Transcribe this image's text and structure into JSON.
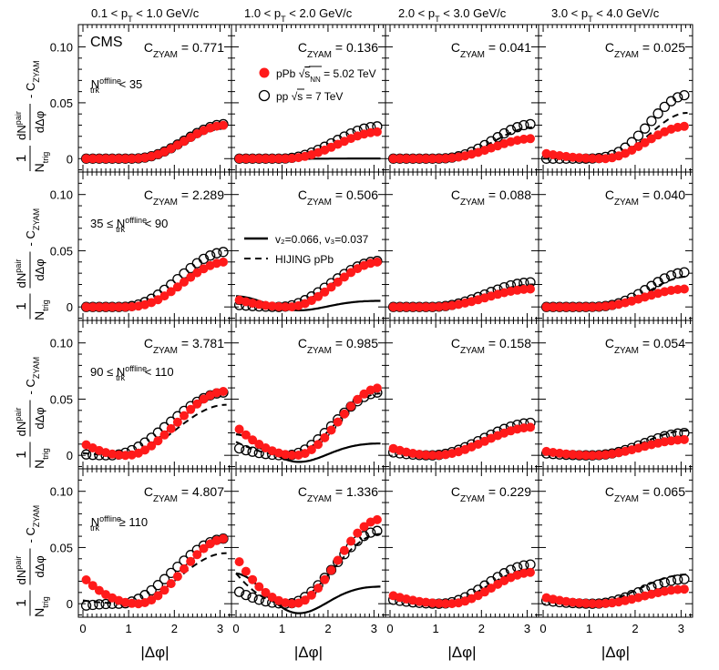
{
  "chart_data": {
    "type": "scatter",
    "grid": "4x4 panels",
    "experiment_label": "CMS",
    "x_axis_label": "|Δφ|",
    "x_range": [
      -0.1,
      3.25
    ],
    "x_ticks": [
      "0",
      "1",
      "2",
      "3"
    ],
    "x_tick_values": [
      0,
      1,
      2,
      3
    ],
    "y_range": [
      -0.012,
      0.12
    ],
    "y_ticks": [
      "0",
      "0.05",
      "0.10"
    ],
    "y_tick_values": [
      0,
      0.05,
      0.1
    ],
    "y_axis_label": {
      "frac_num": "1",
      "frac_den": "N",
      "den_sub": "trig",
      "d_num": "dN",
      "d_sup": "pair",
      "d_den": "dΔφ",
      "minus": "- C",
      "c_sub": "ZYAM"
    },
    "column_titles": [
      {
        "pre": "0.1 < p",
        "sub": "T",
        "post": " < 1.0 GeV/c"
      },
      {
        "pre": "1.0 < p",
        "sub": "T",
        "post": " < 2.0 GeV/c"
      },
      {
        "pre": "2.0 < p",
        "sub": "T",
        "post": " < 3.0 GeV/c"
      },
      {
        "pre": "3.0 < p",
        "sub": "T",
        "post": " < 4.0 GeV/c"
      }
    ],
    "row_labels": [
      {
        "pre": "N",
        "sup": "offline",
        "sub": "trk",
        "post": " < 35"
      },
      {
        "pre": "35 ≤ N",
        "sup": "offline",
        "sub": "trk",
        "post": " < 90"
      },
      {
        "pre": "90 ≤ N",
        "sup": "offline",
        "sub": "trk",
        "post": " < 110"
      },
      {
        "pre": "N",
        "sup": "offline",
        "sub": "trk",
        "post": " ≥ 110"
      }
    ],
    "czyam_prefix": "C",
    "czyam_sub": "ZYAM",
    "czyam_values": [
      [
        "0.771",
        "0.136",
        "0.041",
        "0.025"
      ],
      [
        "2.289",
        "0.506",
        "0.088",
        "0.040"
      ],
      [
        "3.781",
        "0.985",
        "0.158",
        "0.054"
      ],
      [
        "4.807",
        "1.336",
        "0.229",
        "0.065"
      ]
    ],
    "legend_series": {
      "pPb": {
        "label_pre": "pPb ",
        "label_sqrt": "s",
        "label_sub": "NN",
        "label_post": " = 5.02 TeV",
        "marker": "filled circle",
        "color": "#ff1a1a"
      },
      "pp": {
        "label_pre": "pp ",
        "label_sqrt": "s",
        "label_post": " = 7 TeV",
        "marker": "open circle",
        "color": "#000000"
      }
    },
    "legend_curves": {
      "fourier": {
        "label": "v₂=0.066, v₃=0.037",
        "style": "solid",
        "color": "#000000"
      },
      "hijing": {
        "label": "HIJING pPb",
        "style": "dashed",
        "color": "#000000"
      }
    },
    "fourier_v2": 0.066,
    "fourier_v3": 0.037,
    "panel_data": [
      [
        {
          "pPb": {
            "phi_min": 1.0,
            "max": 0.03,
            "min_val": 0.0,
            "shape": 1.3
          },
          "pp": {
            "phi_min": 1.0,
            "max": 0.031,
            "min_val": 0.0,
            "shape": 1.3
          },
          "hijing": {
            "phi_min": 1.0,
            "max": 0.027,
            "min_val": 0.0,
            "shape": 1.3
          },
          "fourier_amp": 0
        },
        {
          "pPb": {
            "phi_min": 0.95,
            "max": 0.024,
            "min_val": 0.0,
            "shape": 1.3
          },
          "pp": {
            "phi_min": 0.9,
            "max": 0.029,
            "min_val": 0.0,
            "shape": 1.2
          },
          "hijing": {
            "phi_min": 0.95,
            "max": 0.025,
            "min_val": 0.0,
            "shape": 1.3
          },
          "fourier_amp": 0.0001
        },
        {
          "pPb": {
            "phi_min": 0.9,
            "max": 0.018,
            "min_val": 0.0,
            "shape": 1.4
          },
          "pp": {
            "phi_min": 0.9,
            "max": 0.031,
            "min_val": 0.0,
            "shape": 1.5
          },
          "hijing": {
            "phi_min": 0.9,
            "max": 0.028,
            "min_val": 0.0,
            "shape": 1.5
          },
          "fourier_amp": 0
        },
        {
          "pPb": {
            "phi_min": 1.3,
            "max": 0.029,
            "min_val": 0.0,
            "start": 0.005,
            "shape": 1.0
          },
          "pp": {
            "phi_min": 0.8,
            "max": 0.057,
            "min_val": 0.0,
            "shape": 1.8
          },
          "hijing": {
            "phi_min": 1.0,
            "max": 0.041,
            "min_val": 0.0,
            "shape": 1.6
          },
          "fourier_amp": 0
        }
      ],
      [
        {
          "pPb": {
            "phi_min": 0.9,
            "max": 0.04,
            "min_val": 0.0,
            "shape": 1.3
          },
          "pp": {
            "phi_min": 0.8,
            "max": 0.049,
            "min_val": 0.0,
            "shape": 1.2
          },
          "hijing": {
            "phi_min": 1.0,
            "max": 0.039,
            "min_val": 0.0,
            "shape": 1.2
          },
          "fourier_amp": 0
        },
        {
          "pPb": {
            "phi_min": 1.15,
            "max": 0.04,
            "min_val": 0.0,
            "start": 0.007,
            "shape": 1.0
          },
          "pp": {
            "phi_min": 0.95,
            "max": 0.041,
            "min_val": 0.0,
            "start": 0.002,
            "shape": 1.0
          },
          "hijing": {
            "phi_min": 1.0,
            "max": 0.04,
            "min_val": 0.0,
            "start": 0.003,
            "shape": 1.0
          },
          "fourier_amp": 0.0035
        },
        {
          "pPb": {
            "phi_min": 0.9,
            "max": 0.016,
            "min_val": 0.0,
            "shape": 1.1
          },
          "pp": {
            "phi_min": 0.9,
            "max": 0.022,
            "min_val": 0.0,
            "shape": 1.1
          },
          "hijing": {
            "phi_min": 0.9,
            "max": 0.02,
            "min_val": 0.0,
            "shape": 1.1
          },
          "fourier_amp": 0
        },
        {
          "pPb": {
            "phi_min": 1.0,
            "max": 0.016,
            "min_val": 0.0,
            "shape": 1.2
          },
          "pp": {
            "phi_min": 0.9,
            "max": 0.031,
            "min_val": 0.0,
            "shape": 1.6
          },
          "hijing": {
            "phi_min": 1.0,
            "max": 0.027,
            "min_val": 0.0,
            "shape": 1.6
          },
          "fourier_amp": 0
        }
      ],
      [
        {
          "pPb": {
            "phi_min": 0.95,
            "max": 0.057,
            "min_val": 0.0,
            "start": 0.011,
            "shape": 1.0
          },
          "pp": {
            "phi_min": 0.6,
            "max": 0.056,
            "min_val": 0.0,
            "start": 0.001,
            "shape": 1.0
          },
          "hijing": {
            "phi_min": 0.9,
            "max": 0.045,
            "min_val": 0.0,
            "start": 0.002,
            "shape": 1.0
          },
          "fourier_amp": 0
        },
        {
          "pPb": {
            "phi_min": 1.3,
            "max": 0.06,
            "min_val": 0.0,
            "start": 0.026,
            "shape": 1.0
          },
          "pp": {
            "phi_min": 1.1,
            "max": 0.056,
            "min_val": 0.0,
            "start": 0.007,
            "shape": 1.0
          },
          "hijing": {
            "phi_min": 1.15,
            "max": 0.055,
            "min_val": 0.0,
            "start": 0.012,
            "shape": 1.0
          },
          "fourier_amp": 0.0068
        },
        {
          "pPb": {
            "phi_min": 1.0,
            "max": 0.025,
            "min_val": 0.0,
            "start": 0.007,
            "shape": 1.0
          },
          "pp": {
            "phi_min": 0.9,
            "max": 0.029,
            "min_val": 0.0,
            "start": 0.003,
            "shape": 1.0
          },
          "hijing": {
            "phi_min": 1.0,
            "max": 0.027,
            "min_val": 0.0,
            "start": 0.004,
            "shape": 1.0
          },
          "fourier_amp": 0
        },
        {
          "pPb": {
            "phi_min": 1.1,
            "max": 0.014,
            "min_val": 0.0,
            "start": 0.004,
            "shape": 1.0
          },
          "pp": {
            "phi_min": 1.0,
            "max": 0.02,
            "min_val": 0.0,
            "start": 0.002,
            "shape": 1.2
          },
          "hijing": {
            "phi_min": 1.0,
            "max": 0.022,
            "min_val": 0.0,
            "start": 0.002,
            "shape": 1.2
          },
          "fourier_amp": 0
        }
      ],
      [
        {
          "pPb": {
            "phi_min": 1.2,
            "max": 0.058,
            "min_val": 0.0,
            "start": 0.024,
            "shape": 1.0
          },
          "pp": {
            "phi_min": 0.8,
            "max": 0.058,
            "min_val": 0.0,
            "start": -0.002,
            "shape": 1.0
          },
          "hijing": {
            "phi_min": 1.0,
            "max": 0.045,
            "min_val": 0.0,
            "start": 0.003,
            "shape": 1.0
          },
          "fourier_amp": 0
        },
        {
          "pPb": {
            "phi_min": 1.25,
            "max": 0.075,
            "min_val": 0.0,
            "start": 0.042,
            "shape": 1.0
          },
          "pp": {
            "phi_min": 1.1,
            "max": 0.065,
            "min_val": 0.0,
            "start": 0.012,
            "shape": 1.0
          },
          "hijing": {
            "phi_min": 1.1,
            "max": 0.062,
            "min_val": 0.0,
            "start": 0.027,
            "shape": 1.0
          },
          "fourier_amp": 0.0098
        },
        {
          "pPb": {
            "phi_min": 1.3,
            "max": 0.028,
            "min_val": 0.0,
            "start": 0.008,
            "shape": 1.0
          },
          "pp": {
            "phi_min": 1.1,
            "max": 0.035,
            "min_val": 0.0,
            "start": 0.004,
            "shape": 1.0
          },
          "hijing": {
            "phi_min": 1.1,
            "max": 0.031,
            "min_val": 0.0,
            "start": 0.005,
            "shape": 1.0
          },
          "fourier_amp": 0
        },
        {
          "pPb": {
            "phi_min": 1.2,
            "max": 0.013,
            "min_val": 0.0,
            "start": 0.006,
            "shape": 1.0
          },
          "pp": {
            "phi_min": 1.1,
            "max": 0.022,
            "min_val": 0.0,
            "start": 0.003,
            "shape": 1.0
          },
          "hijing": {
            "phi_min": 1.0,
            "max": 0.026,
            "min_val": 0.0,
            "start": 0.003,
            "shape": 1.0
          },
          "fourier_amp": 0
        }
      ]
    ]
  }
}
